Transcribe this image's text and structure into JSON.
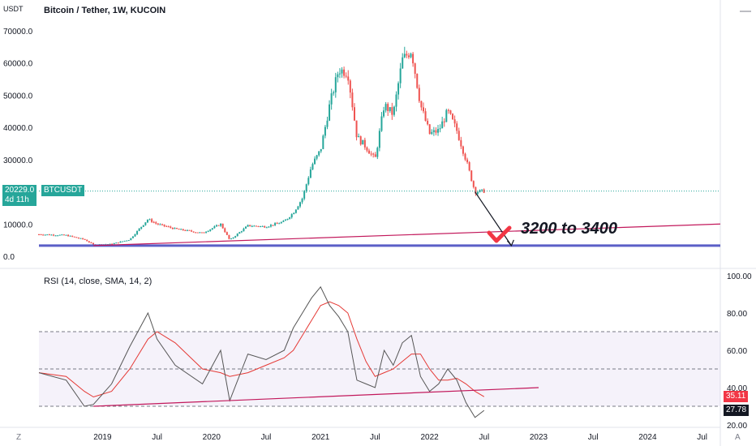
{
  "chart_data": {
    "type": "candlestick",
    "title": "Bitcoin / Tether, 1W, KUCOIN",
    "price_axis_unit": "USDT",
    "price_ticks": [
      70000,
      60000,
      50000,
      40000,
      30000,
      20000,
      10000,
      0
    ],
    "price_tick_labels": [
      "70000.0",
      "60000.0",
      "50000.0",
      "40000.0",
      "30000.0",
      "20000.0",
      "10000.0",
      "0.0"
    ],
    "time_ticks": [
      "2019",
      "Jul",
      "2020",
      "Jul",
      "2021",
      "Jul",
      "2022",
      "Jul",
      "2023",
      "Jul",
      "2024",
      "Jul"
    ],
    "x_range": [
      "2018-06",
      "2024-09"
    ],
    "price_range": [
      0,
      72000
    ],
    "current_price": "20229.0",
    "countdown": "4d 11h",
    "symbol": "BTCUSDT",
    "price_points": [
      [
        "2018-06",
        6800
      ],
      [
        "2018-09",
        6500
      ],
      [
        "2018-11",
        5200
      ],
      [
        "2018-12",
        3600
      ],
      [
        "2019-02",
        3800
      ],
      [
        "2019-04",
        5200
      ],
      [
        "2019-06",
        11500
      ],
      [
        "2019-07",
        10000
      ],
      [
        "2019-09",
        8500
      ],
      [
        "2019-12",
        7200
      ],
      [
        "2020-02",
        10000
      ],
      [
        "2020-03",
        5000
      ],
      [
        "2020-05",
        9500
      ],
      [
        "2020-07",
        9200
      ],
      [
        "2020-09",
        10800
      ],
      [
        "2020-10",
        13500
      ],
      [
        "2020-11",
        18000
      ],
      [
        "2020-12",
        28000
      ],
      [
        "2021-01",
        33000
      ],
      [
        "2021-02",
        47000
      ],
      [
        "2021-03",
        58000
      ],
      [
        "2021-04",
        57000
      ],
      [
        "2021-05",
        37000
      ],
      [
        "2021-06",
        34000
      ],
      [
        "2021-07",
        30000
      ],
      [
        "2021-08",
        47000
      ],
      [
        "2021-09",
        44000
      ],
      [
        "2021-10",
        61000
      ],
      [
        "2021-11",
        64000
      ],
      [
        "2021-12",
        47000
      ],
      [
        "2022-01",
        38000
      ],
      [
        "2022-02",
        39000
      ],
      [
        "2022-03",
        45000
      ],
      [
        "2022-04",
        39000
      ],
      [
        "2022-05",
        30000
      ],
      [
        "2022-06",
        20000
      ],
      [
        "2022-07",
        20229
      ]
    ],
    "drawings": {
      "support_line_value": 3300,
      "trendline": [
        [
          "2018-12",
          3300
        ],
        [
          "2024-09",
          10000
        ]
      ],
      "arrow": [
        [
          "2022-06",
          20000
        ],
        [
          "2022-10",
          3300
        ]
      ],
      "annotation": "3200 to 3400"
    },
    "rsi": {
      "label": "RSI (14, close, SMA, 14, 2)",
      "range": [
        20,
        100
      ],
      "ticks": [
        100,
        80,
        60,
        40,
        20
      ],
      "tick_labels": [
        "100.00",
        "80.00",
        "60.00",
        "40.00",
        "20.00"
      ],
      "band_upper": 70,
      "band_mid": 50,
      "band_lower": 30,
      "rsi_value": "27.78",
      "sma_value": "35.11",
      "rsi_points": [
        [
          "2018-06",
          48
        ],
        [
          "2018-09",
          44
        ],
        [
          "2018-11",
          30
        ],
        [
          "2018-12",
          31
        ],
        [
          "2019-02",
          42
        ],
        [
          "2019-04",
          62
        ],
        [
          "2019-06",
          80
        ],
        [
          "2019-07",
          66
        ],
        [
          "2019-09",
          52
        ],
        [
          "2019-12",
          42
        ],
        [
          "2020-02",
          60
        ],
        [
          "2020-03",
          33
        ],
        [
          "2020-05",
          58
        ],
        [
          "2020-07",
          55
        ],
        [
          "2020-09",
          60
        ],
        [
          "2020-10",
          72
        ],
        [
          "2020-11",
          80
        ],
        [
          "2020-12",
          88
        ],
        [
          "2021-01",
          94
        ],
        [
          "2021-02",
          84
        ],
        [
          "2021-03",
          78
        ],
        [
          "2021-04",
          70
        ],
        [
          "2021-05",
          44
        ],
        [
          "2021-06",
          42
        ],
        [
          "2021-07",
          40
        ],
        [
          "2021-08",
          60
        ],
        [
          "2021-09",
          52
        ],
        [
          "2021-10",
          64
        ],
        [
          "2021-11",
          68
        ],
        [
          "2021-12",
          46
        ],
        [
          "2022-01",
          38
        ],
        [
          "2022-02",
          42
        ],
        [
          "2022-03",
          50
        ],
        [
          "2022-04",
          44
        ],
        [
          "2022-05",
          32
        ],
        [
          "2022-06",
          24
        ],
        [
          "2022-07",
          27.78
        ]
      ],
      "sma_points": [
        [
          "2018-06",
          48
        ],
        [
          "2018-09",
          46
        ],
        [
          "2018-11",
          38
        ],
        [
          "2018-12",
          35
        ],
        [
          "2019-02",
          38
        ],
        [
          "2019-04",
          50
        ],
        [
          "2019-06",
          66
        ],
        [
          "2019-07",
          70
        ],
        [
          "2019-09",
          64
        ],
        [
          "2019-12",
          50
        ],
        [
          "2020-02",
          48
        ],
        [
          "2020-03",
          46
        ],
        [
          "2020-05",
          48
        ],
        [
          "2020-07",
          52
        ],
        [
          "2020-09",
          56
        ],
        [
          "2020-10",
          60
        ],
        [
          "2020-11",
          68
        ],
        [
          "2020-12",
          76
        ],
        [
          "2021-01",
          84
        ],
        [
          "2021-02",
          86
        ],
        [
          "2021-03",
          84
        ],
        [
          "2021-04",
          80
        ],
        [
          "2021-05",
          66
        ],
        [
          "2021-06",
          54
        ],
        [
          "2021-07",
          46
        ],
        [
          "2021-08",
          48
        ],
        [
          "2021-09",
          50
        ],
        [
          "2021-10",
          54
        ],
        [
          "2021-11",
          58
        ],
        [
          "2021-12",
          58
        ],
        [
          "2022-01",
          50
        ],
        [
          "2022-02",
          44
        ],
        [
          "2022-03",
          44
        ],
        [
          "2022-04",
          45
        ],
        [
          "2022-05",
          42
        ],
        [
          "2022-06",
          38
        ],
        [
          "2022-07",
          35.11
        ]
      ],
      "trendline": [
        [
          "2018-12",
          30
        ],
        [
          "2023-01",
          40
        ]
      ]
    }
  }
}
